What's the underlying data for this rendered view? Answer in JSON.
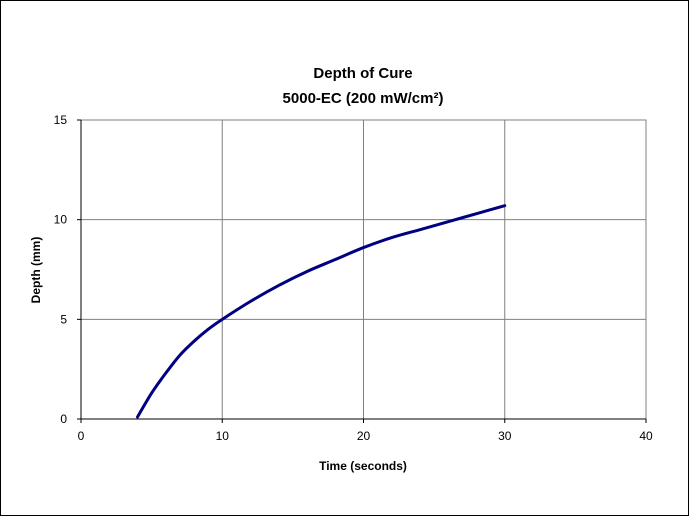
{
  "chart_data": {
    "type": "line",
    "title": "Depth of Cure",
    "subtitle": "5000-EC (200 mW/cm²)",
    "xlabel": "Time (seconds)",
    "ylabel": "Depth (mm)",
    "xlim": [
      0,
      40
    ],
    "ylim": [
      0,
      15
    ],
    "xticks": [
      0,
      10,
      20,
      30,
      40
    ],
    "yticks": [
      0,
      5,
      10,
      15
    ],
    "grid": true,
    "legend": "none",
    "series": [
      {
        "color": "#000080",
        "x": [
          4,
          5,
          6,
          7,
          8,
          9,
          10,
          12,
          14,
          16,
          18,
          20,
          22,
          24,
          26,
          28,
          30
        ],
        "y": [
          0.1,
          1.3,
          2.3,
          3.2,
          3.9,
          4.5,
          5.0,
          5.9,
          6.7,
          7.4,
          8.0,
          8.6,
          9.1,
          9.5,
          9.9,
          10.3,
          10.7
        ]
      }
    ]
  }
}
